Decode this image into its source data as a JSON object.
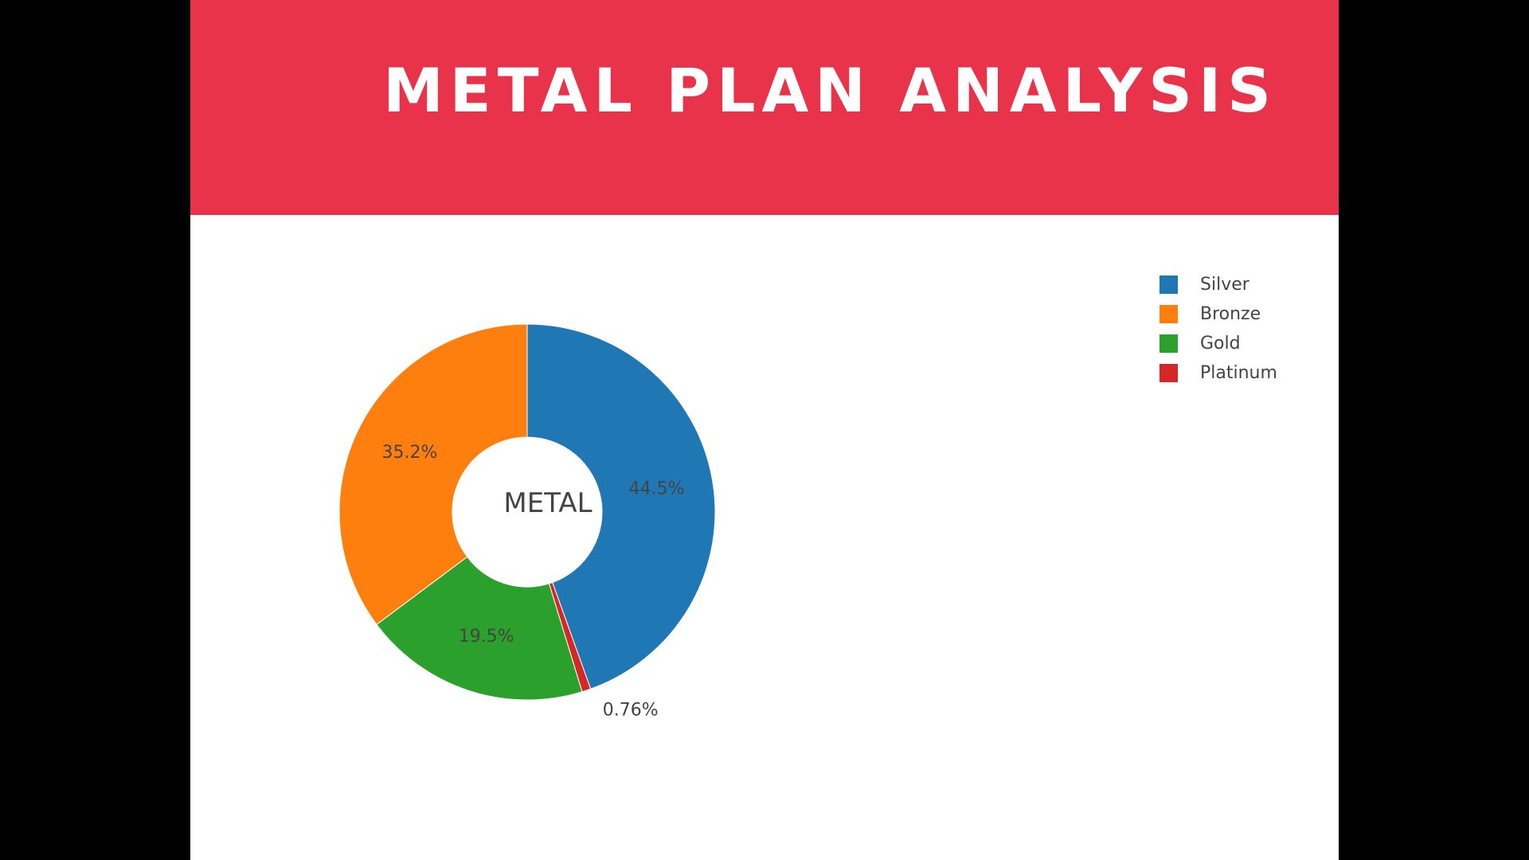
{
  "banner": {
    "title": "METAL PLAN ANALYSIS",
    "color": "#e9334a"
  },
  "chart_data": {
    "type": "pie",
    "hole": true,
    "center_label": "METAL",
    "direction": "clockwise",
    "start": "top",
    "legend_position": "top-right",
    "slices": [
      {
        "label": "Silver",
        "value": 44.5,
        "text": "44.5%",
        "color": "#1f77b4"
      },
      {
        "label": "Platinum",
        "value": 0.76,
        "text": "0.76%",
        "color": "#d62728"
      },
      {
        "label": "Gold",
        "value": 19.5,
        "text": "19.5%",
        "color": "#2ca02c"
      },
      {
        "label": "Bronze",
        "value": 35.2,
        "text": "35.2%",
        "color": "#ff7f0e"
      }
    ],
    "legend": [
      {
        "label": "Silver",
        "color": "#1f77b4"
      },
      {
        "label": "Bronze",
        "color": "#ff7f0e"
      },
      {
        "label": "Gold",
        "color": "#2ca02c"
      },
      {
        "label": "Platinum",
        "color": "#d62728"
      }
    ]
  }
}
